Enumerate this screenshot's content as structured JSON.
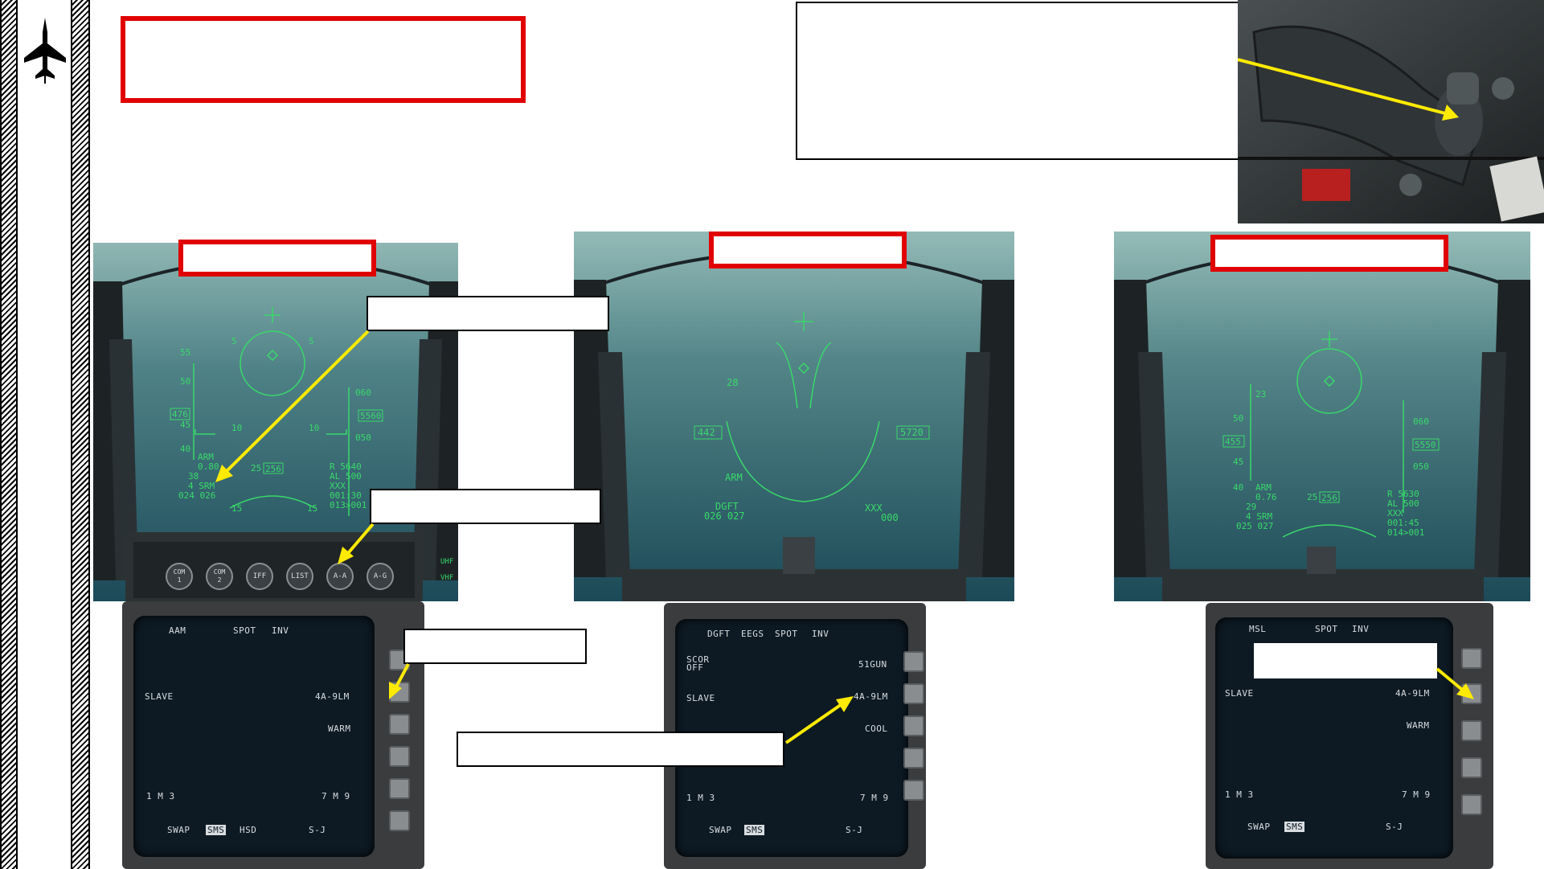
{
  "colors": {
    "callout_red": "#e00000",
    "hud_green": "#39d86a",
    "arrow_yellow": "#ffea00",
    "mfd_text": "#d8dde0"
  },
  "icons": {
    "logo": "fighter-jet-icon"
  },
  "hud_left": {
    "speed_ticks": [
      "55",
      "50",
      "45",
      "40"
    ],
    "speed_box": "476",
    "alt_ticks": [
      "060",
      "050"
    ],
    "alt_box": "5560",
    "pitch_ladder": [
      "10",
      "10",
      "5",
      "5"
    ],
    "left_block": [
      "ARM",
      "0.80",
      "38",
      "4 SRM",
      "024  026"
    ],
    "right_block": [
      "R 5640",
      "AL  500",
      "XXX",
      "001:30",
      "013>001"
    ],
    "heading_box": "256",
    "heading_left": "25",
    "heading_ticks": [
      "15",
      "15"
    ],
    "ufc_buttons": [
      "COM\n1",
      "COM\n2",
      "IFF",
      "LIST",
      "A-A",
      "A-G"
    ],
    "ufc_side": [
      "UHF",
      "VHF"
    ]
  },
  "hud_mid": {
    "speed_box": "442",
    "alt_box": "5720",
    "left_num": "28",
    "arm": "ARM",
    "dgft": "DGFT",
    "bottom_left": "026  027",
    "bottom_right_a": "XXX",
    "bottom_right_b": "000"
  },
  "hud_right": {
    "speed_ticks": [
      "50",
      "45",
      "40"
    ],
    "speed_box": "455",
    "alt_ticks": [
      "060",
      "050"
    ],
    "alt_box": "5550",
    "left_block": [
      "ARM",
      "0.76",
      "29",
      "4 SRM",
      "025  027"
    ],
    "right_block": [
      "R 5630",
      "AL  500",
      "XXX",
      "001:45",
      "014>001"
    ],
    "heading_box": "256",
    "heading_left": "25",
    "top_num": "23"
  },
  "mfd_left": {
    "top": [
      "AAM",
      "SPOT",
      "INV"
    ],
    "slave": "SLAVE",
    "right": [
      "4A-9LM",
      "WARM"
    ],
    "bottom_left": "1 M 3",
    "bottom_right": "7 M 9",
    "osb_bottom": [
      "SWAP",
      "SMS",
      "HSD",
      "S-J"
    ]
  },
  "mfd_mid": {
    "top": [
      "DGFT",
      "EEGS",
      "SPOT",
      "INV"
    ],
    "scor": "SCOR\nOFF",
    "slave": "SLAVE",
    "right": [
      "51GUN",
      "4A-9LM",
      "COOL"
    ],
    "bottom_left": "1 M 3",
    "bottom_right": "7 M 9",
    "osb_bottom": [
      "SWAP",
      "SMS",
      "S-J"
    ]
  },
  "mfd_right": {
    "top": [
      "MSL",
      "SPOT",
      "INV"
    ],
    "slave": "SLAVE",
    "right": [
      "4A-9LM",
      "WARM"
    ],
    "bottom_left": "1 M 3",
    "bottom_right": "7 M 9",
    "osb_bottom": [
      "SWAP",
      "SMS",
      "S-J"
    ]
  }
}
